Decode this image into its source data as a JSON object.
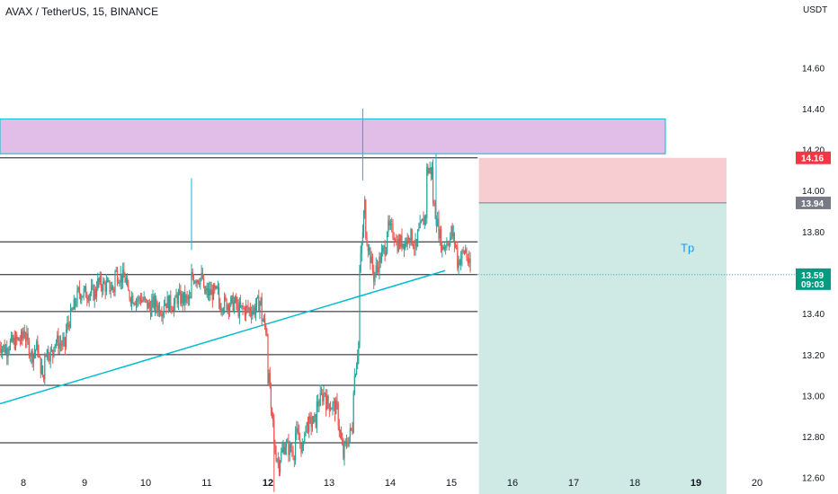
{
  "header": {
    "title": "AVAX / TetherUS, 15, BINANCE",
    "unit": "USDT"
  },
  "colors": {
    "up": "#26a69a",
    "down": "#ef5350",
    "trendline": "#00bcd4",
    "resistance_zone": "#e1bee7",
    "stop_zone": "#f8cdd2",
    "target_zone": "#cfeae5"
  },
  "chart_data": {
    "type": "candlestick",
    "symbol": "AVAX / TetherUS",
    "interval": "15",
    "exchange": "BINANCE",
    "ylim": [
      12.52,
      14.93
    ],
    "y_ticks": [
      "14.60",
      "14.40",
      "14.20",
      "14.00",
      "13.80",
      "13.40",
      "13.20",
      "13.00",
      "12.80",
      "12.60"
    ],
    "x_ticks": [
      "8",
      "9",
      "10",
      "11",
      "12",
      "13",
      "14",
      "15",
      "16",
      "17",
      "18",
      "19",
      "20"
    ],
    "bold_x_ticks": [
      "12",
      "19"
    ],
    "price_path": [
      [
        7.6,
        13.25,
        13.22
      ],
      [
        7.75,
        13.25,
        13.28
      ],
      [
        8.0,
        13.32,
        13.18
      ],
      [
        8.15,
        13.2,
        13.25
      ],
      [
        8.25,
        13.18,
        13.06
      ],
      [
        8.35,
        13.22,
        13.2
      ],
      [
        8.5,
        13.27,
        13.24
      ],
      [
        8.7,
        13.32,
        13.5
      ],
      [
        8.9,
        13.5,
        13.5
      ],
      [
        9.2,
        13.55,
        13.52
      ],
      [
        9.5,
        13.6,
        13.56
      ],
      [
        9.7,
        13.5,
        13.46
      ],
      [
        9.9,
        13.48,
        13.42
      ],
      [
        10.1,
        13.45,
        13.42
      ],
      [
        10.3,
        13.46,
        13.44
      ],
      [
        10.5,
        13.48,
        13.46
      ],
      [
        10.75,
        13.58,
        13.57
      ],
      [
        10.95,
        13.5,
        13.5
      ],
      [
        11.2,
        13.45,
        13.45
      ],
      [
        11.5,
        13.42,
        13.42
      ],
      [
        11.8,
        13.44,
        13.46
      ],
      [
        11.9,
        13.38,
        13.3
      ],
      [
        12.0,
        13.1,
        13.02
      ],
      [
        12.05,
        12.9,
        12.85
      ],
      [
        12.1,
        12.75,
        12.65
      ],
      [
        12.2,
        12.7,
        12.78
      ],
      [
        12.3,
        12.75,
        12.72
      ],
      [
        12.45,
        12.82,
        12.72
      ],
      [
        12.6,
        12.85,
        12.88
      ],
      [
        12.8,
        12.95,
        13.03
      ],
      [
        12.95,
        12.97,
        12.93
      ],
      [
        13.15,
        12.88,
        12.67
      ],
      [
        13.25,
        12.74,
        12.86
      ],
      [
        13.4,
        13.05,
        13.3
      ],
      [
        13.5,
        13.6,
        14.0
      ],
      [
        13.6,
        13.8,
        13.55
      ],
      [
        13.75,
        13.6,
        13.75
      ],
      [
        13.95,
        13.82,
        13.78
      ],
      [
        14.1,
        13.74,
        13.76
      ],
      [
        14.3,
        13.8,
        13.7
      ],
      [
        14.45,
        13.78,
        13.9
      ],
      [
        14.6,
        14.1,
        14.1
      ],
      [
        14.7,
        13.95,
        13.72
      ],
      [
        14.85,
        13.72,
        13.78
      ],
      [
        15.0,
        13.8,
        13.7
      ],
      [
        15.1,
        13.65,
        13.72
      ],
      [
        15.25,
        13.68,
        13.58
      ],
      [
        15.33,
        13.6,
        13.59
      ]
    ],
    "spikes": [
      {
        "x": 10.75,
        "high": 14.06
      },
      {
        "x": 13.55,
        "high": 14.4
      },
      {
        "x": 12.1,
        "low": 12.53
      },
      {
        "x": 14.75,
        "high": 14.18
      }
    ],
    "horizontal_lines": [
      {
        "price": 14.16,
        "x_end": 15.43
      },
      {
        "price": 13.75,
        "x_end": 15.43
      },
      {
        "price": 13.59,
        "x_end": 15.43
      },
      {
        "price": 13.41,
        "x_end": 15.43
      },
      {
        "price": 13.2,
        "x_end": 15.43
      },
      {
        "price": 13.05,
        "x_end": 15.43
      },
      {
        "price": 12.77,
        "x_end": 15.43
      }
    ],
    "trendline": {
      "from": [
        7.6,
        12.96
      ],
      "to": [
        14.9,
        13.61
      ]
    },
    "resistance_zone": {
      "x_start": 7.6,
      "x_end": 18.5,
      "price_low": 14.18,
      "price_high": 14.35
    },
    "position": {
      "x_start": 15.45,
      "x_end": 19.5,
      "stop": 14.16,
      "entry": 13.94,
      "current": 13.59,
      "target": 12.52,
      "label": "Tp"
    },
    "price_labels": [
      {
        "value": "14.16",
        "color": "#f23645"
      },
      {
        "value": "13.94",
        "color": "#787b86"
      },
      {
        "value": "13.59",
        "sub": "09:03",
        "color": "#089981"
      }
    ]
  }
}
